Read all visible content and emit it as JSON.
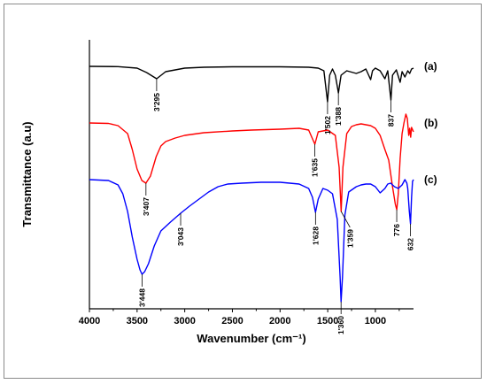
{
  "chart_data": {
    "type": "line",
    "xlabel": "Wavenumber (cm⁻¹)",
    "ylabel": "Transmittance (a.u)",
    "xlim": [
      4000,
      600
    ],
    "x_reversed": true,
    "x_ticks": [
      4000,
      3500,
      3000,
      2500,
      2000,
      1500,
      1000
    ],
    "grid": false,
    "series": [
      {
        "name": "(a)",
        "color": "#000000",
        "y_units": "arbitrary offset transmittance",
        "points": [
          [
            4000,
            0
          ],
          [
            3700,
            -0.3
          ],
          [
            3500,
            -2
          ],
          [
            3400,
            -7
          ],
          [
            3295,
            -14
          ],
          [
            3200,
            -6
          ],
          [
            3000,
            -2
          ],
          [
            2800,
            -1
          ],
          [
            2500,
            -0.5
          ],
          [
            2000,
            -0.5
          ],
          [
            1700,
            -1
          ],
          [
            1600,
            -2
          ],
          [
            1540,
            -5
          ],
          [
            1502,
            -40
          ],
          [
            1480,
            -10
          ],
          [
            1450,
            -3
          ],
          [
            1420,
            -10
          ],
          [
            1388,
            -30
          ],
          [
            1360,
            -10
          ],
          [
            1300,
            -5
          ],
          [
            1200,
            -8
          ],
          [
            1150,
            -6
          ],
          [
            1100,
            -3
          ],
          [
            1050,
            -15
          ],
          [
            1030,
            -5
          ],
          [
            1000,
            -2
          ],
          [
            950,
            -5
          ],
          [
            900,
            -14
          ],
          [
            870,
            -5
          ],
          [
            837,
            -38
          ],
          [
            820,
            -10
          ],
          [
            780,
            -4
          ],
          [
            740,
            -18
          ],
          [
            720,
            -6
          ],
          [
            690,
            -12
          ],
          [
            660,
            -5
          ],
          [
            640,
            -8
          ],
          [
            620,
            -3
          ],
          [
            600,
            -2
          ]
        ],
        "peak_labels": [
          {
            "x": 3295,
            "text": "3'295"
          },
          {
            "x": 1502,
            "text": "1'502"
          },
          {
            "x": 1388,
            "text": "1'388"
          },
          {
            "x": 837,
            "text": "837"
          }
        ],
        "series_label": "(a)"
      },
      {
        "name": "(b)",
        "color": "#ff0000",
        "y_units": "arbitrary offset transmittance",
        "points": [
          [
            4000,
            0
          ],
          [
            3800,
            -0.5
          ],
          [
            3700,
            -3
          ],
          [
            3600,
            -12
          ],
          [
            3550,
            -30
          ],
          [
            3500,
            -52
          ],
          [
            3450,
            -65
          ],
          [
            3407,
            -68
          ],
          [
            3360,
            -60
          ],
          [
            3300,
            -38
          ],
          [
            3250,
            -26
          ],
          [
            3200,
            -21
          ],
          [
            3100,
            -17
          ],
          [
            3000,
            -14
          ],
          [
            2800,
            -11
          ],
          [
            2500,
            -9
          ],
          [
            2300,
            -8
          ],
          [
            2000,
            -7
          ],
          [
            1800,
            -6
          ],
          [
            1700,
            -8
          ],
          [
            1635,
            -24
          ],
          [
            1600,
            -10
          ],
          [
            1500,
            -8
          ],
          [
            1420,
            -14
          ],
          [
            1380,
            -50
          ],
          [
            1359,
            -100
          ],
          [
            1340,
            -50
          ],
          [
            1300,
            -12
          ],
          [
            1250,
            -4
          ],
          [
            1200,
            -2
          ],
          [
            1150,
            -1
          ],
          [
            1100,
            -2
          ],
          [
            1050,
            -3
          ],
          [
            1000,
            -6
          ],
          [
            950,
            -14
          ],
          [
            900,
            -30
          ],
          [
            860,
            -42
          ],
          [
            820,
            -72
          ],
          [
            790,
            -92
          ],
          [
            776,
            -98
          ],
          [
            760,
            -80
          ],
          [
            740,
            -40
          ],
          [
            720,
            -12
          ],
          [
            700,
            0
          ],
          [
            680,
            10
          ],
          [
            665,
            5
          ],
          [
            650,
            -14
          ],
          [
            640,
            -6
          ],
          [
            630,
            -16
          ],
          [
            620,
            -5
          ],
          [
            600,
            -10
          ]
        ],
        "peak_labels": [
          {
            "x": 3407,
            "text": "3'407"
          },
          {
            "x": 1635,
            "text": "1'635"
          },
          {
            "x": 776,
            "text": "776"
          }
        ],
        "series_label": "(b)"
      },
      {
        "name": "(c)",
        "color": "#0000ff",
        "y_units": "arbitrary offset transmittance",
        "points": [
          [
            4000,
            0
          ],
          [
            3800,
            -1
          ],
          [
            3700,
            -6
          ],
          [
            3650,
            -16
          ],
          [
            3600,
            -36
          ],
          [
            3550,
            -65
          ],
          [
            3500,
            -90
          ],
          [
            3470,
            -102
          ],
          [
            3448,
            -107
          ],
          [
            3420,
            -104
          ],
          [
            3380,
            -95
          ],
          [
            3320,
            -75
          ],
          [
            3250,
            -58
          ],
          [
            3150,
            -48
          ],
          [
            3043,
            -38
          ],
          [
            2950,
            -30
          ],
          [
            2850,
            -22
          ],
          [
            2750,
            -14
          ],
          [
            2650,
            -8
          ],
          [
            2550,
            -5
          ],
          [
            2400,
            -4
          ],
          [
            2200,
            -3
          ],
          [
            2000,
            -3
          ],
          [
            1900,
            -4
          ],
          [
            1800,
            -5
          ],
          [
            1700,
            -10
          ],
          [
            1660,
            -20
          ],
          [
            1628,
            -37
          ],
          [
            1600,
            -22
          ],
          [
            1550,
            -10
          ],
          [
            1500,
            -12
          ],
          [
            1450,
            -16
          ],
          [
            1400,
            -45
          ],
          [
            1370,
            -110
          ],
          [
            1360,
            -138
          ],
          [
            1345,
            -110
          ],
          [
            1320,
            -40
          ],
          [
            1280,
            -14
          ],
          [
            1200,
            -8
          ],
          [
            1150,
            -6
          ],
          [
            1100,
            -5
          ],
          [
            1050,
            -5
          ],
          [
            1000,
            -8
          ],
          [
            950,
            -15
          ],
          [
            900,
            -10
          ],
          [
            870,
            -5
          ],
          [
            840,
            -4
          ],
          [
            800,
            -8
          ],
          [
            760,
            -10
          ],
          [
            720,
            -6
          ],
          [
            690,
            0
          ],
          [
            670,
            -4
          ],
          [
            660,
            -10
          ],
          [
            645,
            -35
          ],
          [
            632,
            -50
          ],
          [
            620,
            -20
          ],
          [
            610,
            -2
          ],
          [
            600,
            0
          ]
        ],
        "peak_labels": [
          {
            "x": 3448,
            "text": "3'448"
          },
          {
            "x": 3043,
            "text": "3'043"
          },
          {
            "x": 1628,
            "text": "1'628"
          },
          {
            "x": 1360,
            "text": "1'360"
          },
          {
            "x": 632,
            "text": "632"
          }
        ],
        "series_label": "(c)"
      }
    ],
    "extra_peak_labels": [
      {
        "x": 1359,
        "text": "1'359"
      }
    ]
  }
}
